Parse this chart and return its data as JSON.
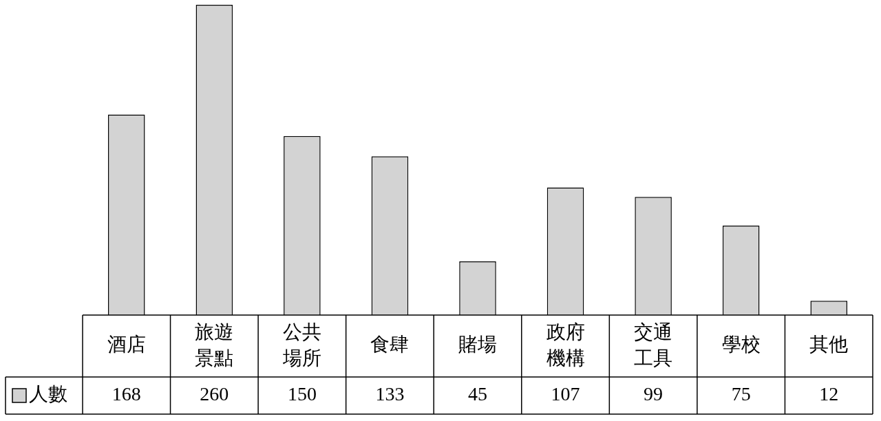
{
  "chart_data": {
    "type": "bar",
    "categories": [
      "酒店",
      "旅遊景點",
      "公共場所",
      "食肆",
      "賭場",
      "政府機構",
      "交通工具",
      "學校",
      "其他"
    ],
    "series": [
      {
        "name": "人數",
        "color": "#d3d3d3",
        "values": [
          168,
          260,
          150,
          133,
          45,
          107,
          99,
          75,
          12
        ]
      }
    ],
    "data_labels": true,
    "legend": "bottom left"
  }
}
